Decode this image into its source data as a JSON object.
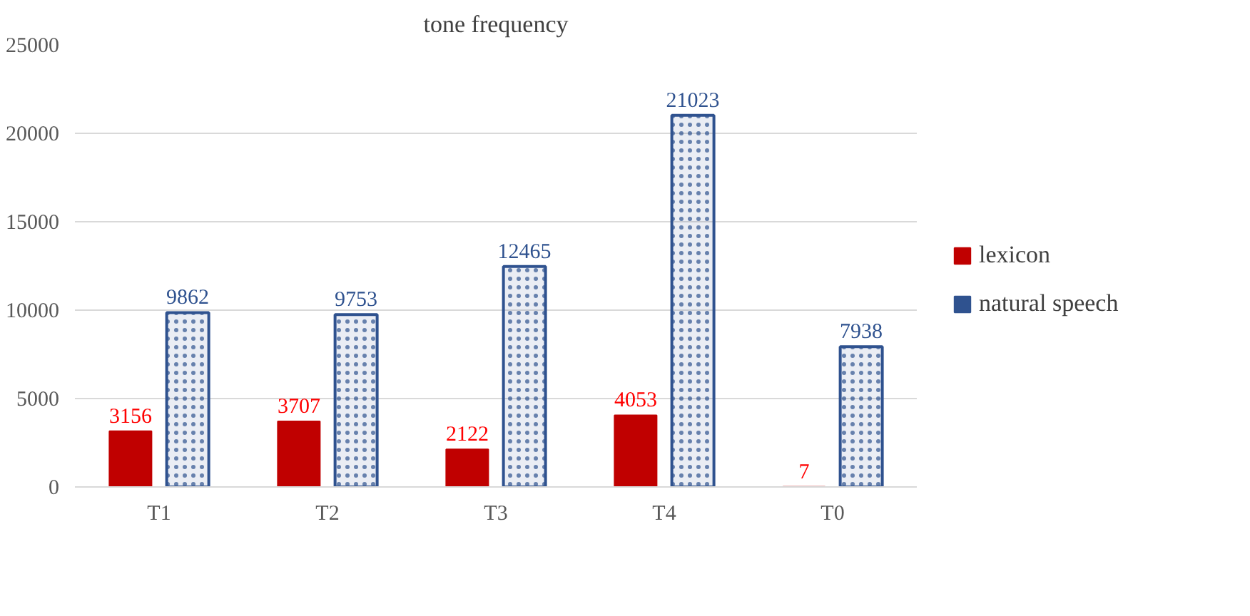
{
  "chart_data": {
    "type": "bar",
    "title": "tone frequency",
    "categories": [
      "T1",
      "T2",
      "T3",
      "T4",
      "T0"
    ],
    "series": [
      {
        "name": "lexicon",
        "color": "#c00000",
        "values": [
          3156,
          3707,
          2122,
          4053,
          7
        ]
      },
      {
        "name": "natural speech",
        "color": "#2f528f",
        "values": [
          9862,
          9753,
          12465,
          21023,
          7938
        ]
      }
    ],
    "ylim": [
      0,
      25000
    ],
    "yticks": [
      0,
      5000,
      10000,
      15000,
      20000,
      25000
    ],
    "grid": "y",
    "legend": "right",
    "data_labels": true
  }
}
